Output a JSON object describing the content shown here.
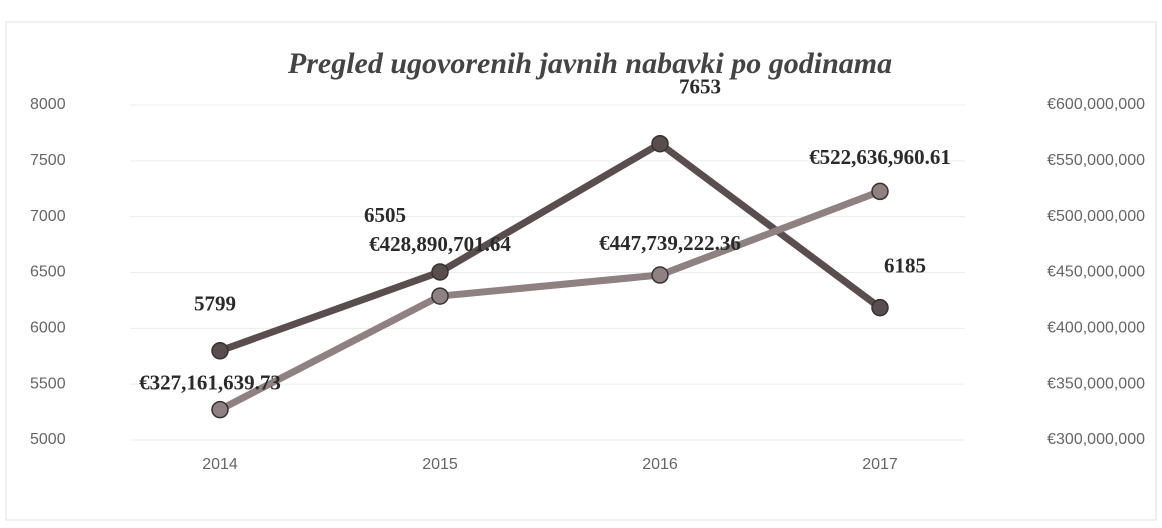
{
  "chart_data": {
    "type": "line",
    "title": "Pregled ugovorenih javnih nabavki po godinama",
    "categories": [
      "2014",
      "2015",
      "2016",
      "2017"
    ],
    "series": [
      {
        "color": "#5a4d50",
        "values": [
          5799,
          6505,
          7653,
          6185
        ]
      },
      {
        "color": "#8f8082",
        "axis": "y2",
        "values": [
          327161639.73,
          428890701.64,
          447739222.36,
          522636960.61
        ],
        "value_labels": [
          "€327,161,639.73",
          "€428,890,701.64",
          "€447,739,222.36",
          "€522,636,960.61"
        ]
      }
    ],
    "ylim": [
      5000,
      8000
    ],
    "yticks": [
      5000,
      5500,
      6000,
      6500,
      7000,
      7500,
      8000
    ],
    "y2lim": [
      300000000,
      600000000
    ],
    "y2ticks": [
      {
        "value": 300000000,
        "label": "€300,000,000"
      },
      {
        "value": 350000000,
        "label": "€350,000,000"
      },
      {
        "value": 400000000,
        "label": "€400,000,000"
      },
      {
        "value": 450000000,
        "label": "€450,000,000"
      },
      {
        "value": 500000000,
        "label": "€500,000,000"
      },
      {
        "value": 550000000,
        "label": "€550,000,000"
      },
      {
        "value": 600000000,
        "label": "€600,000,000"
      }
    ],
    "grid": true
  }
}
